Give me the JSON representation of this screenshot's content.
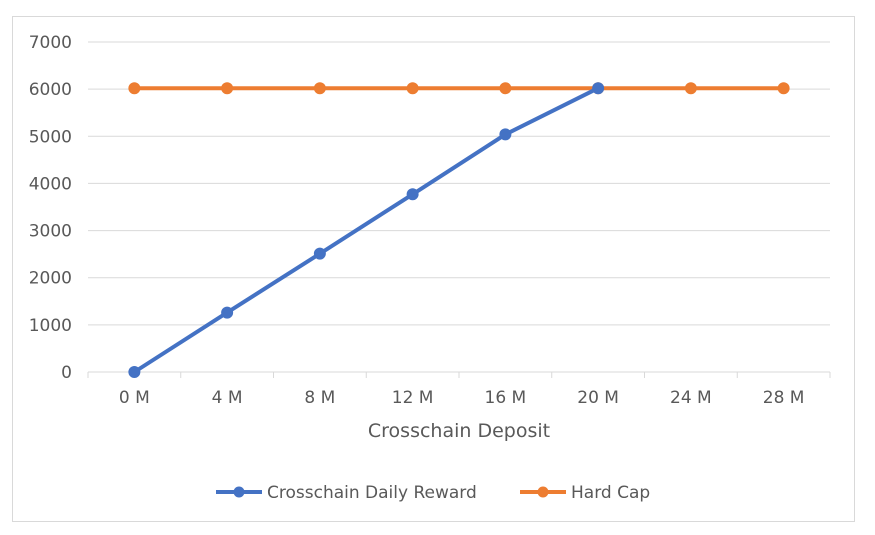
{
  "chart_data": {
    "type": "line",
    "categories": [
      "0 M",
      "4 M",
      "8 M",
      "12 M",
      "16 M",
      "20 M",
      "24 M",
      "28 M"
    ],
    "series": [
      {
        "name": "Crosschain Daily Reward",
        "color": "#4472c4",
        "values": [
          0,
          1260,
          2510,
          3770,
          5040,
          6020,
          null,
          null
        ]
      },
      {
        "name": "Hard Cap",
        "color": "#ed7d31",
        "values": [
          6020,
          6020,
          6020,
          6020,
          6020,
          6020,
          6020,
          6020
        ]
      }
    ],
    "title": "",
    "xlabel": "Crosschain Deposit",
    "ylabel": "",
    "ylim": [
      0,
      7000
    ],
    "yticks": [
      0,
      1000,
      2000,
      3000,
      4000,
      5000,
      6000,
      7000
    ],
    "grid": true,
    "legend_position": "bottom"
  }
}
